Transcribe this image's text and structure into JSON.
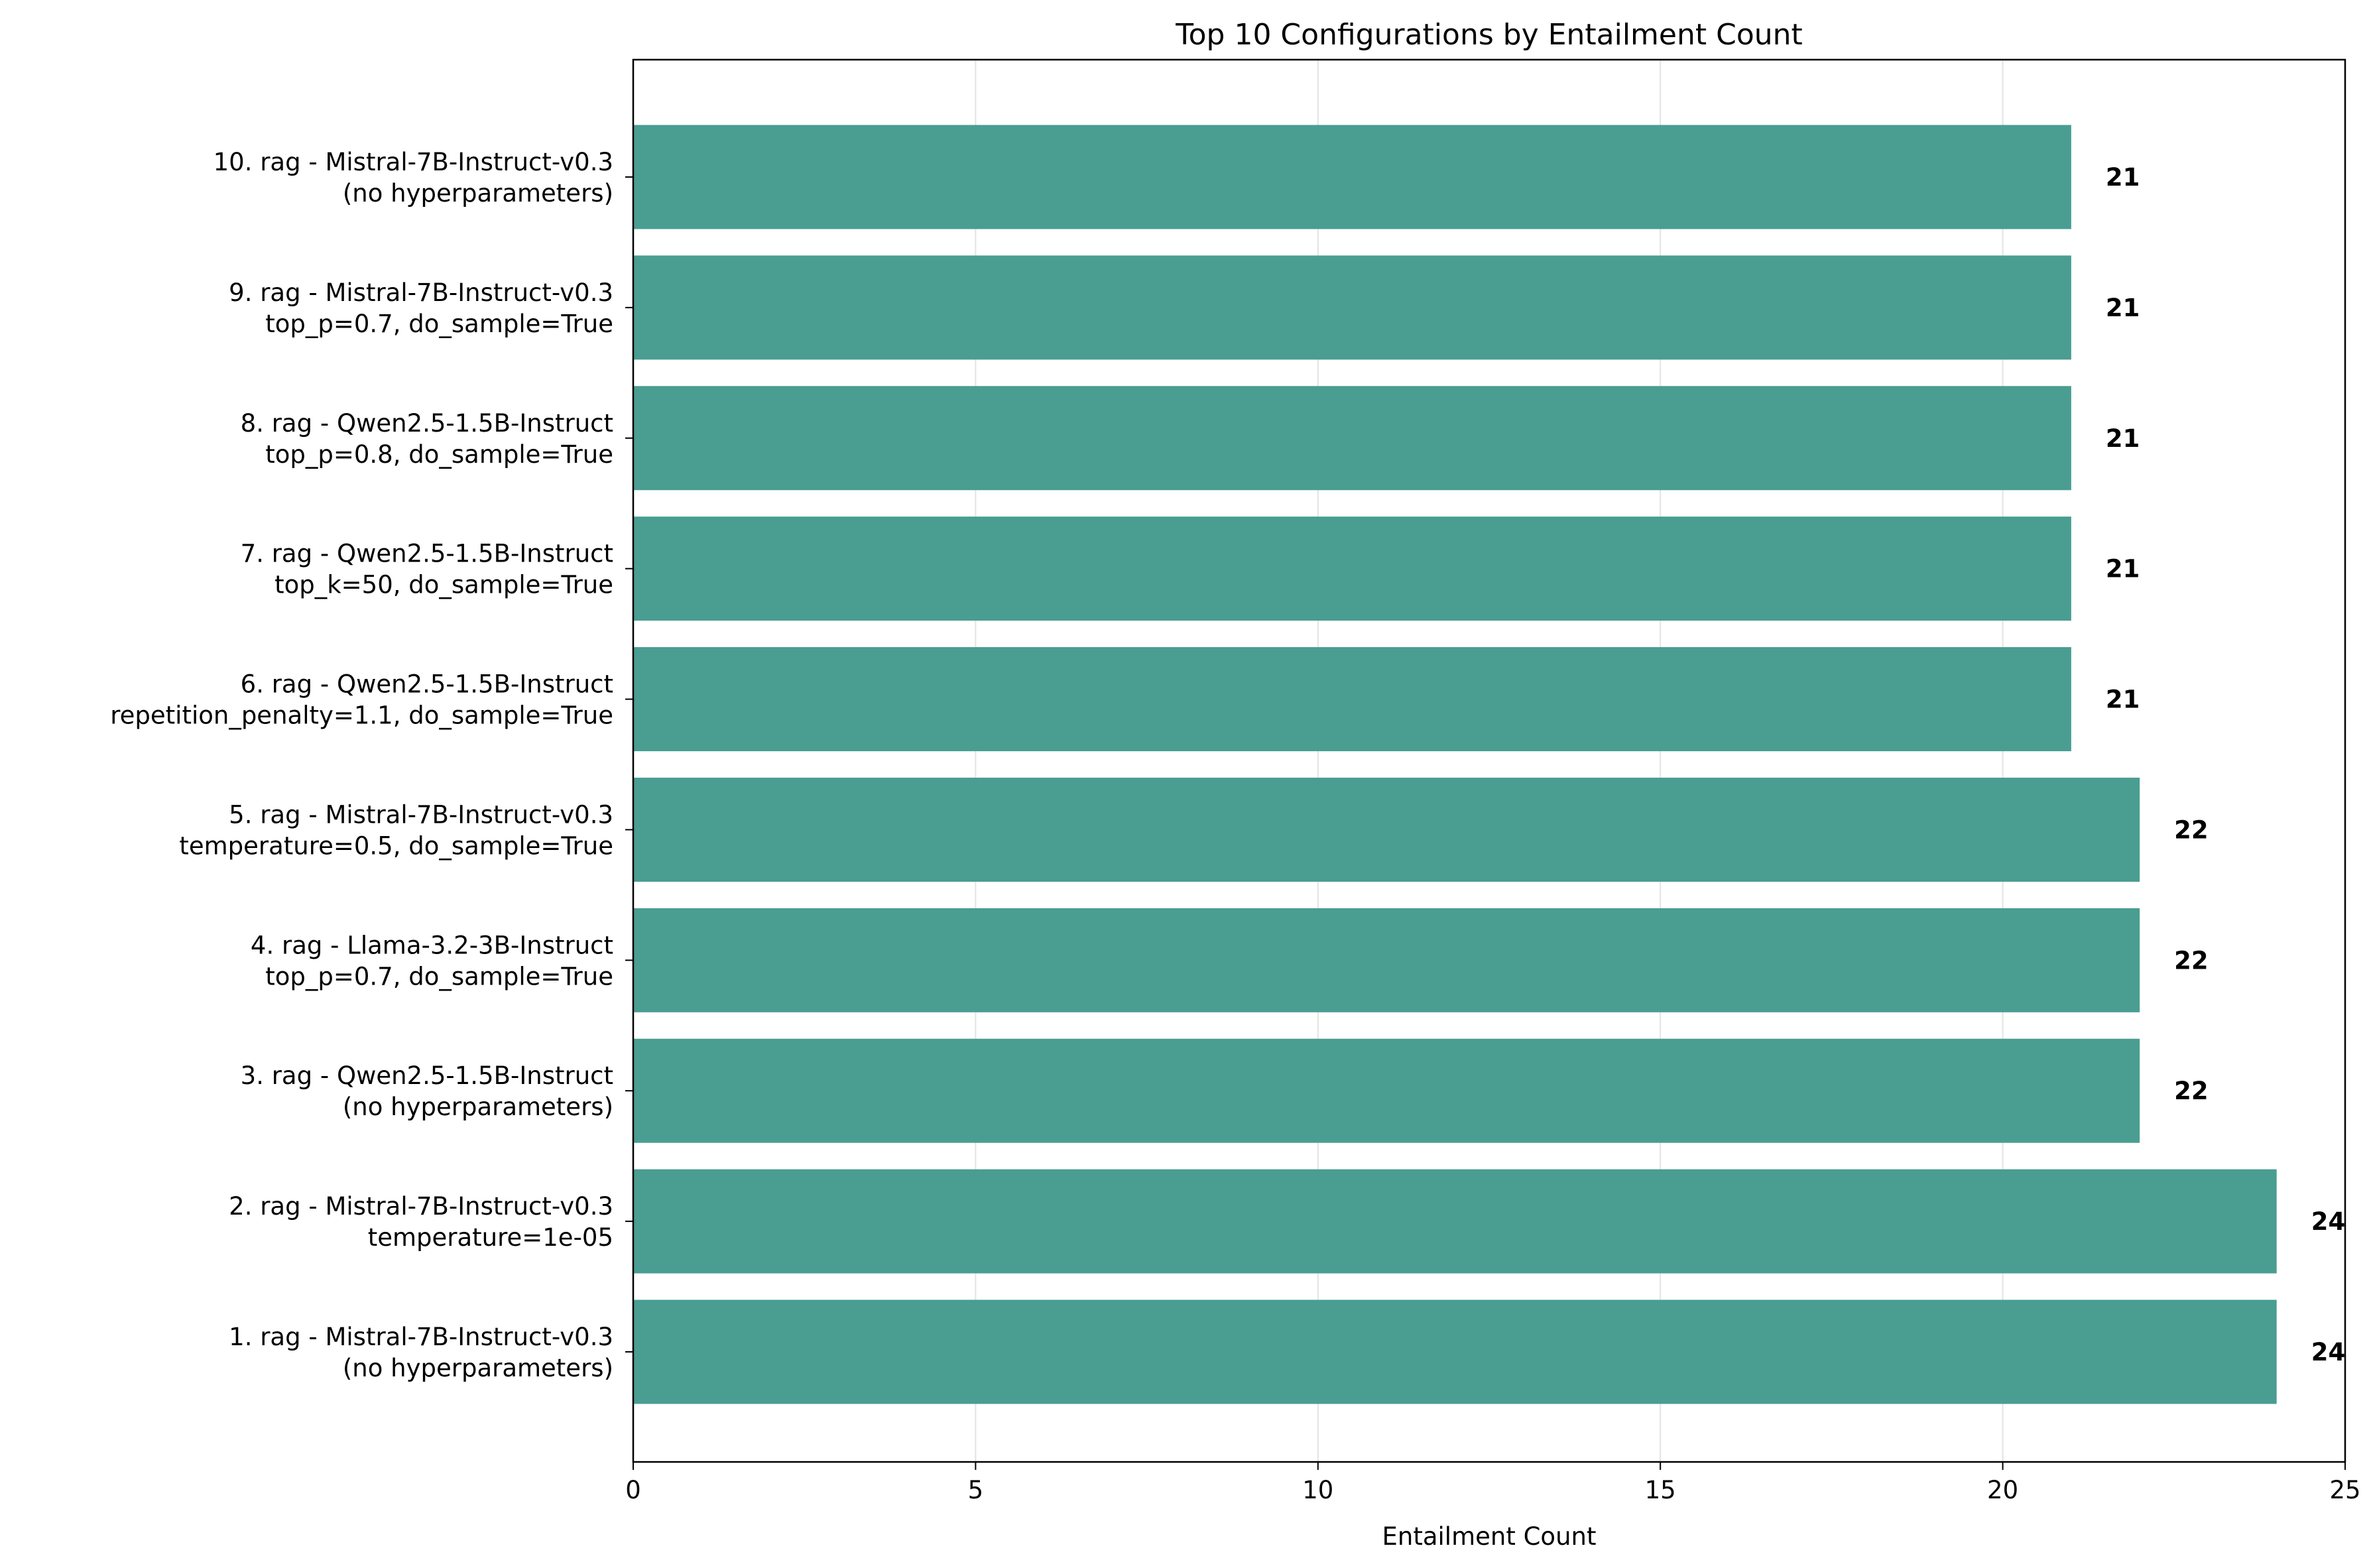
{
  "chart_data": {
    "type": "bar",
    "orientation": "horizontal",
    "title": "Top 10 Configurations by Entailment Count",
    "xlabel": "Entailment Count",
    "ylabel": "",
    "xlim": [
      0,
      25
    ],
    "xticks": [
      0,
      5,
      10,
      15,
      20,
      25
    ],
    "grid": "vertical",
    "bar_color": "#499d91",
    "categories": [
      [
        "1. rag - Mistral-7B-Instruct-v0.3",
        "(no hyperparameters)"
      ],
      [
        "2. rag - Mistral-7B-Instruct-v0.3",
        "temperature=1e-05"
      ],
      [
        "3. rag - Qwen2.5-1.5B-Instruct",
        "(no hyperparameters)"
      ],
      [
        "4. rag - Llama-3.2-3B-Instruct",
        "top_p=0.7, do_sample=True"
      ],
      [
        "5. rag - Mistral-7B-Instruct-v0.3",
        "temperature=0.5, do_sample=True"
      ],
      [
        "6. rag - Qwen2.5-1.5B-Instruct",
        "repetition_penalty=1.1, do_sample=True"
      ],
      [
        "7. rag - Qwen2.5-1.5B-Instruct",
        "top_k=50, do_sample=True"
      ],
      [
        "8. rag - Qwen2.5-1.5B-Instruct",
        "top_p=0.8, do_sample=True"
      ],
      [
        "9. rag - Mistral-7B-Instruct-v0.3",
        "top_p=0.7, do_sample=True"
      ],
      [
        "10. rag - Mistral-7B-Instruct-v0.3",
        "(no hyperparameters)"
      ]
    ],
    "values": [
      24,
      24,
      22,
      22,
      22,
      21,
      21,
      21,
      21,
      21
    ]
  }
}
